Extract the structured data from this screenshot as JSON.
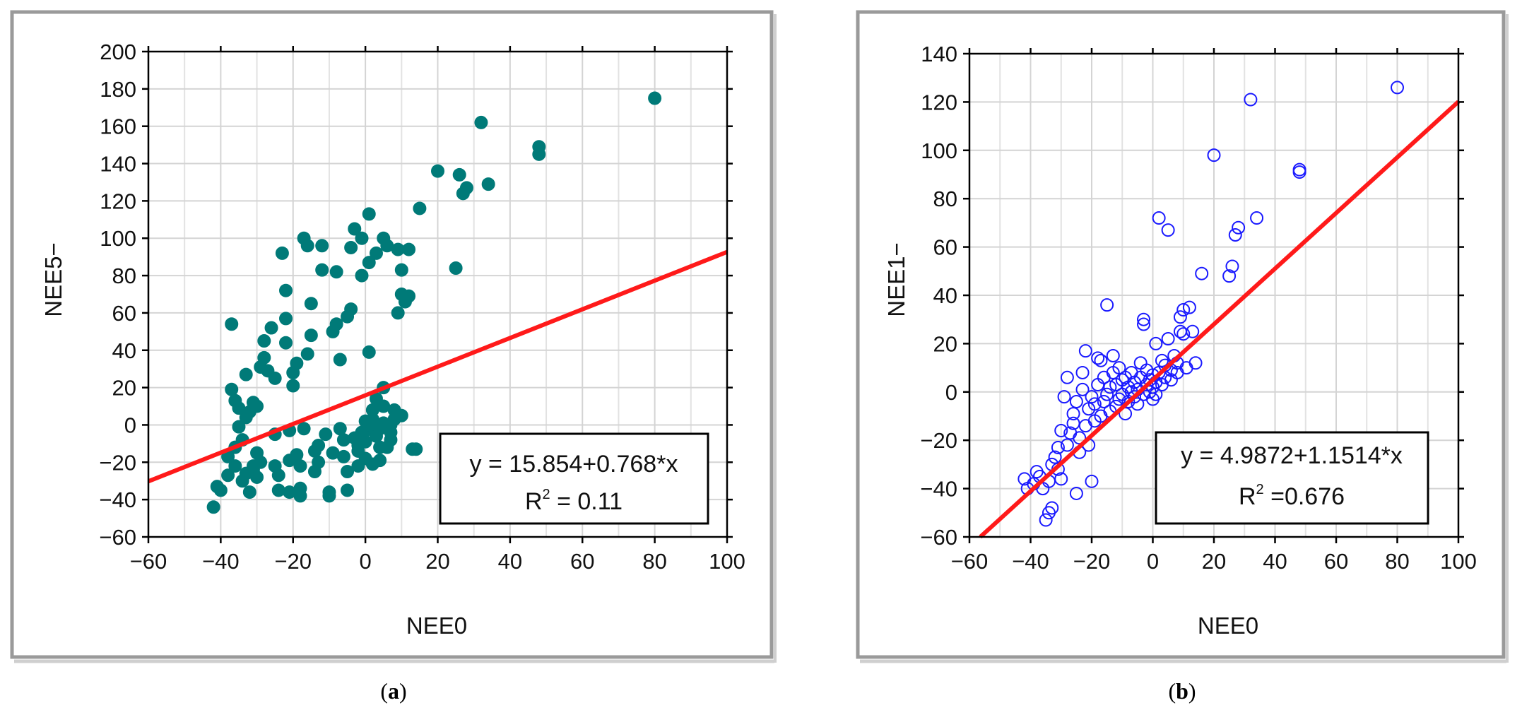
{
  "chart_data": [
    {
      "type": "scatter",
      "panel": "a",
      "caption_letter": "a",
      "xlabel": "NEE0",
      "ylabel": "NEE5−",
      "xlim": [
        -60,
        100
      ],
      "ylim": [
        -60,
        200
      ],
      "xticks": [
        -60,
        -40,
        -20,
        0,
        20,
        40,
        60,
        80,
        100
      ],
      "yticks": [
        -60,
        -40,
        -20,
        0,
        20,
        40,
        60,
        80,
        100,
        120,
        140,
        160,
        180,
        200
      ],
      "xtick_labels": [
        "−60",
        "−40",
        "−20",
        "0",
        "20",
        "40",
        "60",
        "80",
        "100"
      ],
      "ytick_labels": [
        "−60",
        "−40",
        "−20",
        "0",
        "20",
        "40",
        "60",
        "80",
        "100",
        "120",
        "140",
        "160",
        "180",
        "200"
      ],
      "grid": true,
      "marker": "filled-circle",
      "marker_color": "#007a78",
      "line_color": "#ff1a1a",
      "regression": {
        "intercept": 15.854,
        "slope": 0.768
      },
      "equation_text": "y = 15.854+0.768*x",
      "r2_prefix": "R",
      "r2_sup": "2",
      "r2_value_text": " = 0.11",
      "points": [
        [
          -42,
          -44
        ],
        [
          -40,
          -35
        ],
        [
          -41,
          -33
        ],
        [
          -38,
          -27
        ],
        [
          -36,
          -22
        ],
        [
          -38,
          -17
        ],
        [
          -36,
          -12
        ],
        [
          -34,
          -8
        ],
        [
          -35,
          -1
        ],
        [
          -33,
          4
        ],
        [
          -35,
          9
        ],
        [
          -36,
          13
        ],
        [
          -37,
          19
        ],
        [
          -37,
          54
        ],
        [
          -33,
          27
        ],
        [
          -32,
          7
        ],
        [
          -31,
          12
        ],
        [
          -30,
          -15
        ],
        [
          -31,
          -22
        ],
        [
          -32,
          -36
        ],
        [
          -33,
          -26
        ],
        [
          -34,
          -30
        ],
        [
          -31,
          -24
        ],
        [
          -30,
          -28
        ],
        [
          -29,
          -20
        ],
        [
          -30,
          10
        ],
        [
          -29,
          31
        ],
        [
          -28,
          36
        ],
        [
          -28,
          45
        ],
        [
          -27,
          29
        ],
        [
          -26,
          52
        ],
        [
          -25,
          25
        ],
        [
          -25,
          -22
        ],
        [
          -24,
          -27
        ],
        [
          -24,
          -35
        ],
        [
          -25,
          -5
        ],
        [
          -23,
          92
        ],
        [
          -22,
          44
        ],
        [
          -22,
          57
        ],
        [
          -21,
          -3
        ],
        [
          -21,
          -19
        ],
        [
          -21,
          -36
        ],
        [
          -22,
          72
        ],
        [
          -20,
          28
        ],
        [
          -20,
          21
        ],
        [
          -19,
          33
        ],
        [
          -19,
          -16
        ],
        [
          -18,
          -22
        ],
        [
          -18,
          -38
        ],
        [
          -18,
          -34
        ],
        [
          -17,
          100
        ],
        [
          -17,
          -2
        ],
        [
          -16,
          38
        ],
        [
          -16,
          96
        ],
        [
          -15,
          48
        ],
        [
          -15,
          65
        ],
        [
          -14,
          -25
        ],
        [
          -14,
          -14
        ],
        [
          -13,
          -11
        ],
        [
          -13,
          -20
        ],
        [
          -12,
          83
        ],
        [
          -12,
          96
        ],
        [
          -11,
          -5
        ],
        [
          -10,
          -36
        ],
        [
          -10,
          -38
        ],
        [
          -9,
          50
        ],
        [
          -9,
          -15
        ],
        [
          -8,
          54
        ],
        [
          -8,
          82
        ],
        [
          -7,
          35
        ],
        [
          -7,
          -2
        ],
        [
          -6,
          -17
        ],
        [
          -6,
          -8
        ],
        [
          -5,
          -25
        ],
        [
          -5,
          -35
        ],
        [
          -5,
          58
        ],
        [
          -4,
          62
        ],
        [
          -4,
          95
        ],
        [
          -3,
          105
        ],
        [
          -3,
          -7
        ],
        [
          -2,
          -22
        ],
        [
          -2,
          -14
        ],
        [
          -2,
          -11
        ],
        [
          -1,
          -4
        ],
        [
          -1,
          80
        ],
        [
          -1,
          100
        ],
        [
          0,
          -18
        ],
        [
          0,
          -9
        ],
        [
          0,
          -3
        ],
        [
          0,
          2
        ],
        [
          1,
          39
        ],
        [
          1,
          87
        ],
        [
          1,
          113
        ],
        [
          2,
          -1
        ],
        [
          2,
          3
        ],
        [
          2,
          8
        ],
        [
          2,
          -21
        ],
        [
          3,
          -6
        ],
        [
          3,
          14
        ],
        [
          3,
          92
        ],
        [
          4,
          -19
        ],
        [
          4,
          -12
        ],
        [
          4,
          -2
        ],
        [
          5,
          1
        ],
        [
          5,
          10
        ],
        [
          5,
          20
        ],
        [
          5,
          100
        ],
        [
          6,
          96
        ],
        [
          6,
          -12
        ],
        [
          7,
          -8
        ],
        [
          7,
          0
        ],
        [
          7,
          -4
        ],
        [
          8,
          3
        ],
        [
          8,
          8
        ],
        [
          9,
          5
        ],
        [
          9,
          94
        ],
        [
          9,
          60
        ],
        [
          10,
          70
        ],
        [
          10,
          83
        ],
        [
          10,
          5
        ],
        [
          11,
          66
        ],
        [
          12,
          69
        ],
        [
          12,
          94
        ],
        [
          13,
          -13
        ],
        [
          14,
          -13
        ],
        [
          15,
          116
        ],
        [
          20,
          136
        ],
        [
          25,
          84
        ],
        [
          26,
          134
        ],
        [
          27,
          124
        ],
        [
          28,
          127
        ],
        [
          32,
          162
        ],
        [
          34,
          129
        ],
        [
          48,
          149
        ],
        [
          48,
          145
        ],
        [
          80,
          175
        ]
      ]
    },
    {
      "type": "scatter",
      "panel": "b",
      "caption_letter": "b",
      "xlabel": "NEE0",
      "ylabel": "NEE1−",
      "xlim": [
        -60,
        100
      ],
      "ylim": [
        -60,
        140
      ],
      "xticks": [
        -60,
        -40,
        -20,
        0,
        20,
        40,
        60,
        80,
        100
      ],
      "yticks": [
        -60,
        -40,
        -20,
        0,
        20,
        40,
        60,
        80,
        100,
        120,
        140
      ],
      "xtick_labels": [
        "−60",
        "−40",
        "−20",
        "0",
        "20",
        "40",
        "60",
        "80",
        "100"
      ],
      "ytick_labels": [
        "−60",
        "−40",
        "−20",
        "0",
        "20",
        "40",
        "60",
        "80",
        "100",
        "120",
        "140"
      ],
      "grid": true,
      "marker": "open-circle",
      "marker_color": "#1a1aff",
      "line_color": "#ff1a1a",
      "regression": {
        "intercept": 4.9872,
        "slope": 1.1514
      },
      "equation_text": "y = 4.9872+1.1514*x",
      "r2_prefix": "R",
      "r2_sup": "2",
      "r2_value_text": " =0.676",
      "points": [
        [
          -42,
          -36
        ],
        [
          -41,
          -40
        ],
        [
          -39,
          -38
        ],
        [
          -38,
          -33
        ],
        [
          -37,
          -35
        ],
        [
          -36,
          -40
        ],
        [
          -35,
          -53
        ],
        [
          -34,
          -50
        ],
        [
          -33,
          -48
        ],
        [
          -34,
          -37
        ],
        [
          -33,
          -30
        ],
        [
          -32,
          -27
        ],
        [
          -31,
          -23
        ],
        [
          -31,
          -32
        ],
        [
          -30,
          -36
        ],
        [
          -30,
          -16
        ],
        [
          -29,
          -2
        ],
        [
          -28,
          -22
        ],
        [
          -28,
          6
        ],
        [
          -27,
          -17
        ],
        [
          -26,
          -13
        ],
        [
          -26,
          -9
        ],
        [
          -25,
          -4
        ],
        [
          -25,
          -42
        ],
        [
          -24,
          -25
        ],
        [
          -24,
          -19
        ],
        [
          -23,
          8
        ],
        [
          -23,
          1
        ],
        [
          -22,
          17
        ],
        [
          -22,
          -14
        ],
        [
          -21,
          -22
        ],
        [
          -21,
          -7
        ],
        [
          -20,
          -2
        ],
        [
          -20,
          -37
        ],
        [
          -19,
          -12
        ],
        [
          -19,
          -5
        ],
        [
          -18,
          14
        ],
        [
          -18,
          3
        ],
        [
          -17,
          -10
        ],
        [
          -17,
          13
        ],
        [
          -16,
          -4
        ],
        [
          -16,
          6
        ],
        [
          -15,
          36
        ],
        [
          -15,
          -1
        ],
        [
          -14,
          -8
        ],
        [
          -14,
          2
        ],
        [
          -13,
          15
        ],
        [
          -13,
          8
        ],
        [
          -12,
          -6
        ],
        [
          -12,
          3
        ],
        [
          -11,
          -3
        ],
        [
          -11,
          10
        ],
        [
          -10,
          -1
        ],
        [
          -10,
          5
        ],
        [
          -9,
          6
        ],
        [
          -9,
          -9
        ],
        [
          -8,
          -4
        ],
        [
          -8,
          2
        ],
        [
          -7,
          0
        ],
        [
          -7,
          8
        ],
        [
          -6,
          -2
        ],
        [
          -6,
          4
        ],
        [
          -5,
          1
        ],
        [
          -5,
          -5
        ],
        [
          -4,
          12
        ],
        [
          -4,
          6
        ],
        [
          -3,
          28
        ],
        [
          -3,
          30
        ],
        [
          -3,
          -1
        ],
        [
          -2,
          9
        ],
        [
          -2,
          3
        ],
        [
          -1,
          0
        ],
        [
          -1,
          5
        ],
        [
          0,
          2
        ],
        [
          0,
          -3
        ],
        [
          0,
          7
        ],
        [
          1,
          4
        ],
        [
          1,
          -1
        ],
        [
          1,
          20
        ],
        [
          2,
          72
        ],
        [
          2,
          8
        ],
        [
          3,
          3
        ],
        [
          3,
          13
        ],
        [
          4,
          6
        ],
        [
          4,
          11
        ],
        [
          5,
          67
        ],
        [
          5,
          22
        ],
        [
          6,
          9
        ],
        [
          6,
          5
        ],
        [
          7,
          15
        ],
        [
          8,
          12
        ],
        [
          8,
          8
        ],
        [
          9,
          25
        ],
        [
          9,
          31
        ],
        [
          10,
          34
        ],
        [
          10,
          24
        ],
        [
          11,
          10
        ],
        [
          12,
          35
        ],
        [
          13,
          25
        ],
        [
          14,
          12
        ],
        [
          16,
          49
        ],
        [
          20,
          98
        ],
        [
          25,
          48
        ],
        [
          26,
          52
        ],
        [
          27,
          65
        ],
        [
          28,
          68
        ],
        [
          32,
          121
        ],
        [
          34,
          72
        ],
        [
          48,
          91
        ],
        [
          48,
          92
        ],
        [
          80,
          126
        ]
      ]
    }
  ]
}
